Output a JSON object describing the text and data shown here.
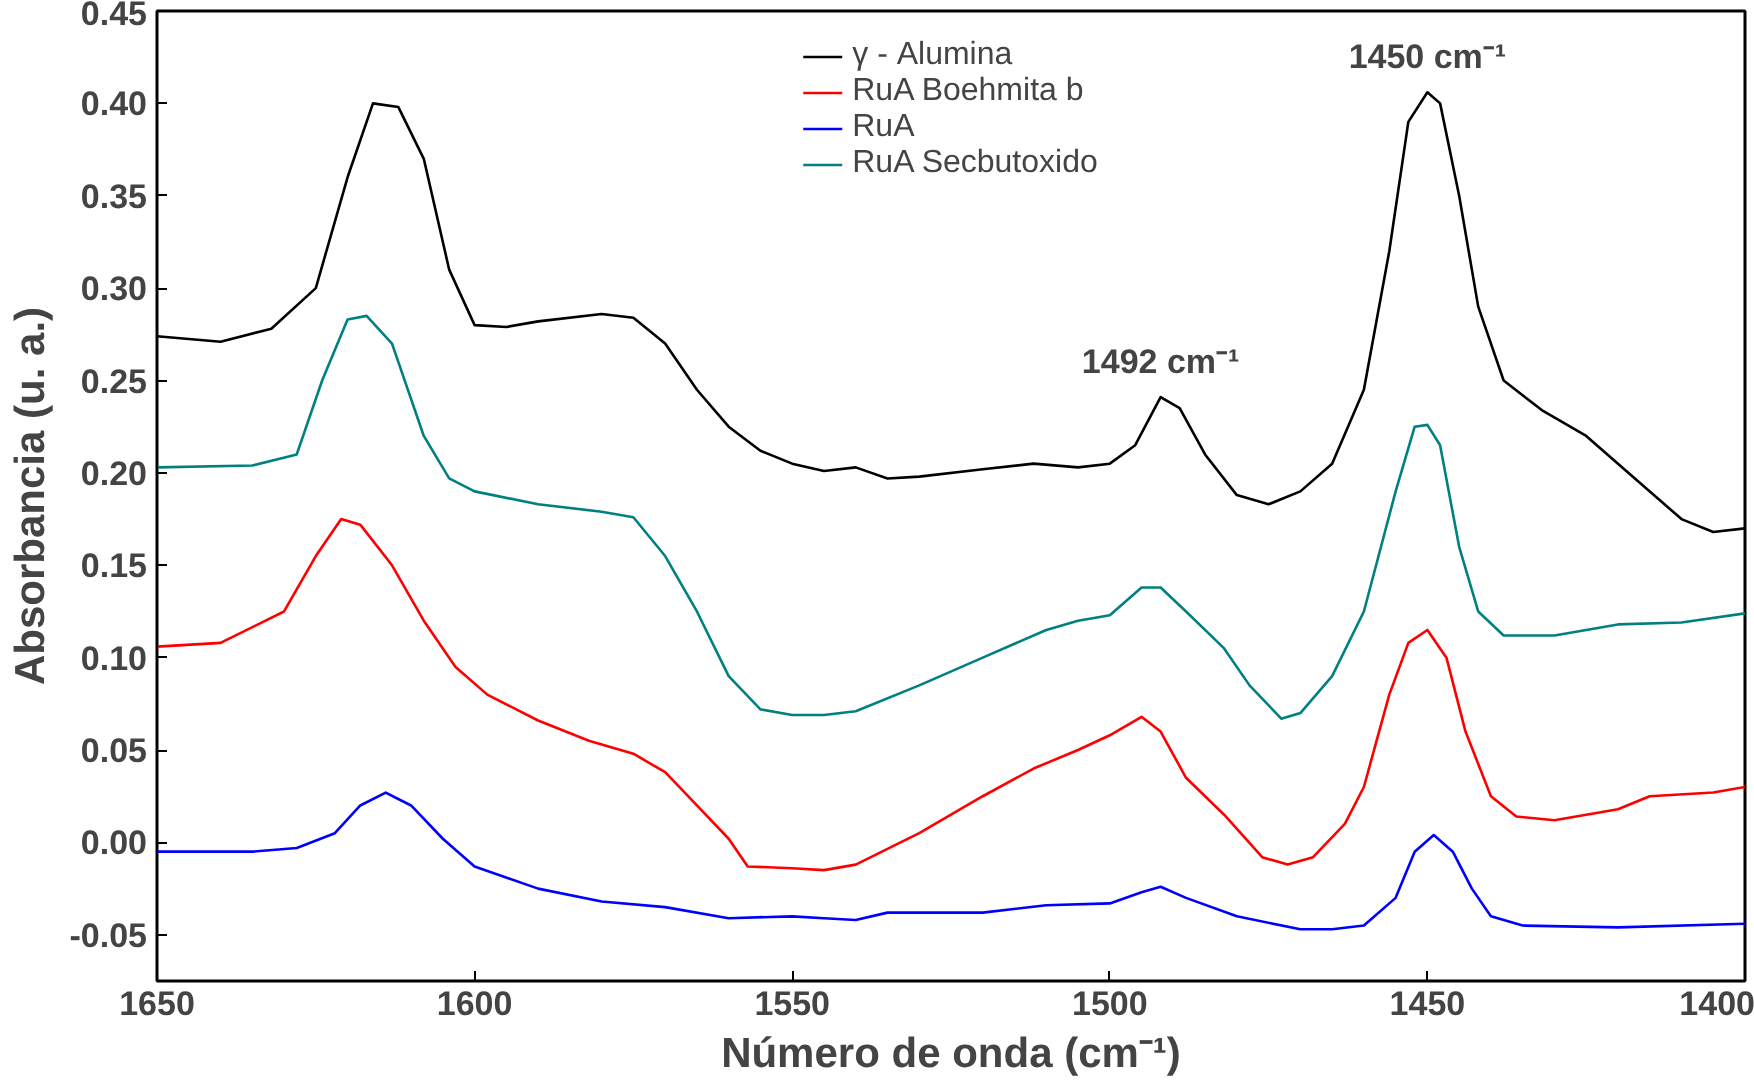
{
  "chart_data": {
    "type": "line",
    "xlabel": "Número de onda (cm⁻¹)",
    "ylabel": "Absorbancia (u. a.)",
    "xlim": [
      1650,
      1400
    ],
    "ylim": [
      -0.075,
      0.45
    ],
    "xticks": [
      1650,
      1600,
      1550,
      1500,
      1450,
      1400
    ],
    "yticks": [
      {
        "value": -0.05,
        "label": "-0.05"
      },
      {
        "value": 0.0,
        "label": "0.00"
      },
      {
        "value": 0.05,
        "label": "0.05"
      },
      {
        "value": 0.1,
        "label": "0.10"
      },
      {
        "value": 0.15,
        "label": "0.15"
      },
      {
        "value": 0.2,
        "label": "0.20"
      },
      {
        "value": 0.25,
        "label": "0.25"
      },
      {
        "value": 0.3,
        "label": "0.30"
      },
      {
        "value": 0.35,
        "label": "0.35"
      },
      {
        "value": 0.4,
        "label": "0.40"
      },
      {
        "value": 0.45,
        "label": "0.45"
      }
    ],
    "grid": false,
    "legend": "top",
    "line_style": "solid",
    "marker": "none",
    "annotations": [
      {
        "text": "1450 cm⁻¹",
        "x": 1450,
        "y": 0.406
      },
      {
        "text": "1492 cm⁻¹",
        "x": 1492,
        "y": 0.241
      }
    ],
    "series": [
      {
        "name": "γ - Alumina",
        "color": "#000000",
        "x": [
          1650,
          1640,
          1632,
          1625,
          1620,
          1616,
          1612,
          1608,
          1604,
          1600,
          1595,
          1590,
          1580,
          1575,
          1570,
          1565,
          1560,
          1555,
          1550,
          1545,
          1540,
          1535,
          1530,
          1520,
          1512,
          1505,
          1500,
          1496,
          1492,
          1489,
          1485,
          1480,
          1475,
          1470,
          1465,
          1460,
          1456,
          1453,
          1450,
          1448,
          1445,
          1442,
          1438,
          1432,
          1425,
          1420,
          1410,
          1405,
          1400
        ],
        "values": [
          0.274,
          0.271,
          0.278,
          0.3,
          0.36,
          0.4,
          0.398,
          0.37,
          0.31,
          0.28,
          0.279,
          0.282,
          0.286,
          0.284,
          0.27,
          0.245,
          0.225,
          0.212,
          0.205,
          0.201,
          0.203,
          0.197,
          0.198,
          0.202,
          0.205,
          0.203,
          0.205,
          0.215,
          0.241,
          0.235,
          0.21,
          0.188,
          0.183,
          0.19,
          0.205,
          0.245,
          0.32,
          0.39,
          0.406,
          0.4,
          0.35,
          0.29,
          0.25,
          0.234,
          0.22,
          0.205,
          0.175,
          0.168,
          0.17
        ]
      },
      {
        "name": "RuA Boehmita b",
        "color": "#ff0000",
        "x": [
          1650,
          1640,
          1630,
          1625,
          1621,
          1618,
          1613,
          1608,
          1603,
          1598,
          1590,
          1582,
          1575,
          1570,
          1565,
          1560,
          1557,
          1550,
          1545,
          1540,
          1530,
          1520,
          1512,
          1505,
          1500,
          1495,
          1492,
          1488,
          1482,
          1476,
          1472,
          1468,
          1463,
          1460,
          1456,
          1453,
          1450,
          1447,
          1444,
          1440,
          1436,
          1430,
          1420,
          1415,
          1405,
          1400
        ],
        "values": [
          0.106,
          0.108,
          0.125,
          0.155,
          0.175,
          0.172,
          0.15,
          0.12,
          0.095,
          0.08,
          0.066,
          0.055,
          0.048,
          0.038,
          0.02,
          0.002,
          -0.013,
          -0.014,
          -0.015,
          -0.012,
          0.005,
          0.025,
          0.04,
          0.05,
          0.058,
          0.068,
          0.06,
          0.035,
          0.015,
          -0.008,
          -0.012,
          -0.008,
          0.01,
          0.03,
          0.08,
          0.108,
          0.115,
          0.1,
          0.06,
          0.025,
          0.014,
          0.012,
          0.018,
          0.025,
          0.027,
          0.03
        ]
      },
      {
        "name": "RuA",
        "color": "#0000ff",
        "x": [
          1650,
          1635,
          1628,
          1622,
          1618,
          1614,
          1610,
          1605,
          1600,
          1590,
          1580,
          1570,
          1560,
          1550,
          1545,
          1540,
          1535,
          1520,
          1510,
          1500,
          1495,
          1492,
          1488,
          1480,
          1470,
          1465,
          1460,
          1455,
          1452,
          1449,
          1446,
          1443,
          1440,
          1435,
          1420,
          1400
        ],
        "values": [
          -0.005,
          -0.005,
          -0.003,
          0.005,
          0.02,
          0.027,
          0.02,
          0.002,
          -0.013,
          -0.025,
          -0.032,
          -0.035,
          -0.041,
          -0.04,
          -0.041,
          -0.042,
          -0.038,
          -0.038,
          -0.034,
          -0.033,
          -0.027,
          -0.024,
          -0.03,
          -0.04,
          -0.047,
          -0.047,
          -0.045,
          -0.03,
          -0.005,
          0.004,
          -0.005,
          -0.025,
          -0.04,
          -0.045,
          -0.046,
          -0.044
        ]
      },
      {
        "name": "RuA Secbutoxido",
        "color": "#008080",
        "x": [
          1650,
          1635,
          1628,
          1624,
          1620,
          1617,
          1613,
          1608,
          1604,
          1600,
          1590,
          1580,
          1575,
          1570,
          1565,
          1560,
          1555,
          1550,
          1545,
          1540,
          1530,
          1520,
          1510,
          1505,
          1500,
          1495,
          1492,
          1488,
          1482,
          1478,
          1473,
          1470,
          1465,
          1460,
          1455,
          1452,
          1450,
          1448,
          1445,
          1442,
          1438,
          1430,
          1420,
          1410,
          1400
        ],
        "values": [
          0.203,
          0.204,
          0.21,
          0.25,
          0.283,
          0.285,
          0.27,
          0.22,
          0.197,
          0.19,
          0.183,
          0.179,
          0.176,
          0.155,
          0.125,
          0.09,
          0.072,
          0.069,
          0.069,
          0.071,
          0.085,
          0.1,
          0.115,
          0.12,
          0.123,
          0.138,
          0.138,
          0.125,
          0.105,
          0.085,
          0.067,
          0.07,
          0.09,
          0.125,
          0.19,
          0.225,
          0.226,
          0.215,
          0.16,
          0.125,
          0.112,
          0.112,
          0.118,
          0.119,
          0.124
        ]
      }
    ]
  }
}
